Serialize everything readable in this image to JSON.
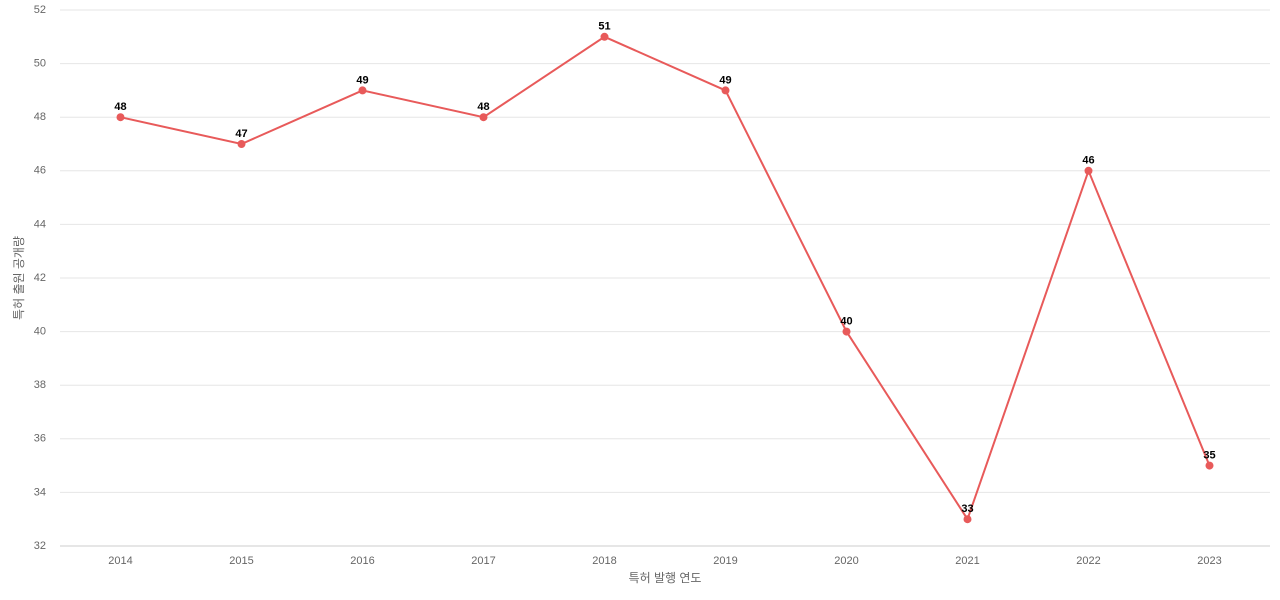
{
  "chart_data": {
    "type": "line",
    "x_label": "특허 발행 연도",
    "y_label": "특허 출원 공개량",
    "categories": [
      "2014",
      "2015",
      "2016",
      "2017",
      "2018",
      "2019",
      "2020",
      "2021",
      "2022",
      "2023"
    ],
    "series": [
      {
        "color": "#e85a5a",
        "values": [
          48,
          47,
          49,
          48,
          51,
          49,
          40,
          33,
          46,
          35
        ]
      }
    ],
    "ylim": [
      32,
      52
    ],
    "yticks": [
      32,
      34,
      36,
      38,
      40,
      42,
      44,
      46,
      48,
      50,
      52
    ],
    "grid": true,
    "data_labels": true
  }
}
